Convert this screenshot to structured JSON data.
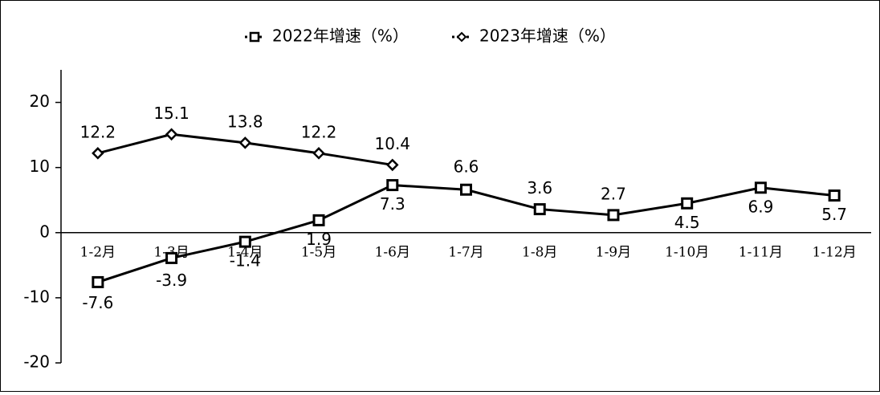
{
  "chart_data": {
    "type": "line",
    "categories": [
      "1-2月",
      "1-3月",
      "1-4月",
      "1-5月",
      "1-6月",
      "1-7月",
      "1-8月",
      "1-9月",
      "1-10月",
      "1-11月",
      "1-12月"
    ],
    "series": [
      {
        "name": "2022年增速（%）",
        "color": "#000000",
        "marker": "square",
        "values": [
          -7.6,
          -3.9,
          -1.4,
          1.9,
          7.3,
          6.6,
          3.6,
          2.7,
          4.5,
          6.9,
          5.7
        ]
      },
      {
        "name": "2023年增速（%）",
        "color": "#000000",
        "marker": "diamond",
        "values": [
          12.2,
          15.1,
          13.8,
          12.2,
          10.4,
          null,
          null,
          null,
          null,
          null,
          null
        ]
      }
    ],
    "ylim": [
      -20,
      25
    ],
    "yticks": [
      -20,
      -10,
      0,
      10,
      20
    ],
    "grid": false,
    "legend": "top"
  }
}
